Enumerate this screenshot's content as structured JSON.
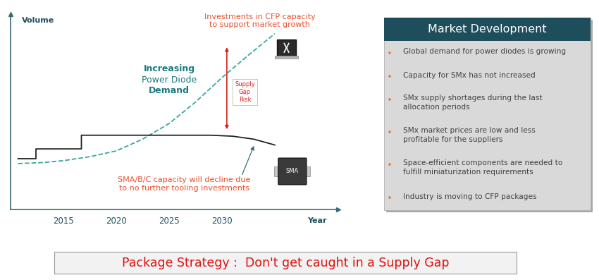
{
  "chart_data": {
    "type": "line",
    "x_label": "Year",
    "y_label": "Volume",
    "xlim": [
      2010,
      2041
    ],
    "ylim": [
      0,
      100
    ],
    "xticks": [
      2015,
      2020,
      2025,
      2030
    ],
    "tick_labels": "x",
    "grid": false,
    "series": [
      {
        "color": "#3aa6a0",
        "line_style": "dashed",
        "x": [
          2010.7,
          2013,
          2015,
          2017.5,
          2020,
          2022.5,
          2025,
          2027.5,
          2030,
          2032.5,
          2035
        ],
        "values": [
          23.5,
          24,
          25,
          27,
          30,
          36,
          44,
          55,
          67.5,
          79,
          90
        ]
      },
      {
        "color": "#222222",
        "line_style": "solid",
        "x": [
          2010.7,
          2012.4,
          2012.4,
          2016.7,
          2016.7,
          2029,
          2031,
          2033,
          2035
        ],
        "values": [
          26,
          26,
          31,
          31,
          38,
          38,
          37.5,
          36,
          33
        ]
      }
    ],
    "demand_label": "Increasing\nPower Diode\nDemand",
    "gap_label": "Supply\nGap\nRisk",
    "investment_note": "Investments in CFP capacity\nto support market growth",
    "capacity_note": "SMA/B/C capacity will decline due\nto no further tooling investments",
    "icon_label": "SMA"
  },
  "panel": {
    "title": "Market Development",
    "bullets": [
      "Global demand for power diodes is growing",
      "Capacity for SMx has not increased",
      "SMx supply shortages during the last\nallocation periods",
      "SMx market prices are low and less\nprofitable for the suppliers",
      "Space-efficient components are needed to\nfulfill miniaturization requirements",
      "Industry is moving to CFP packages"
    ]
  },
  "banner": "Package Strategy :  Don't get caught in a Supply Gap"
}
